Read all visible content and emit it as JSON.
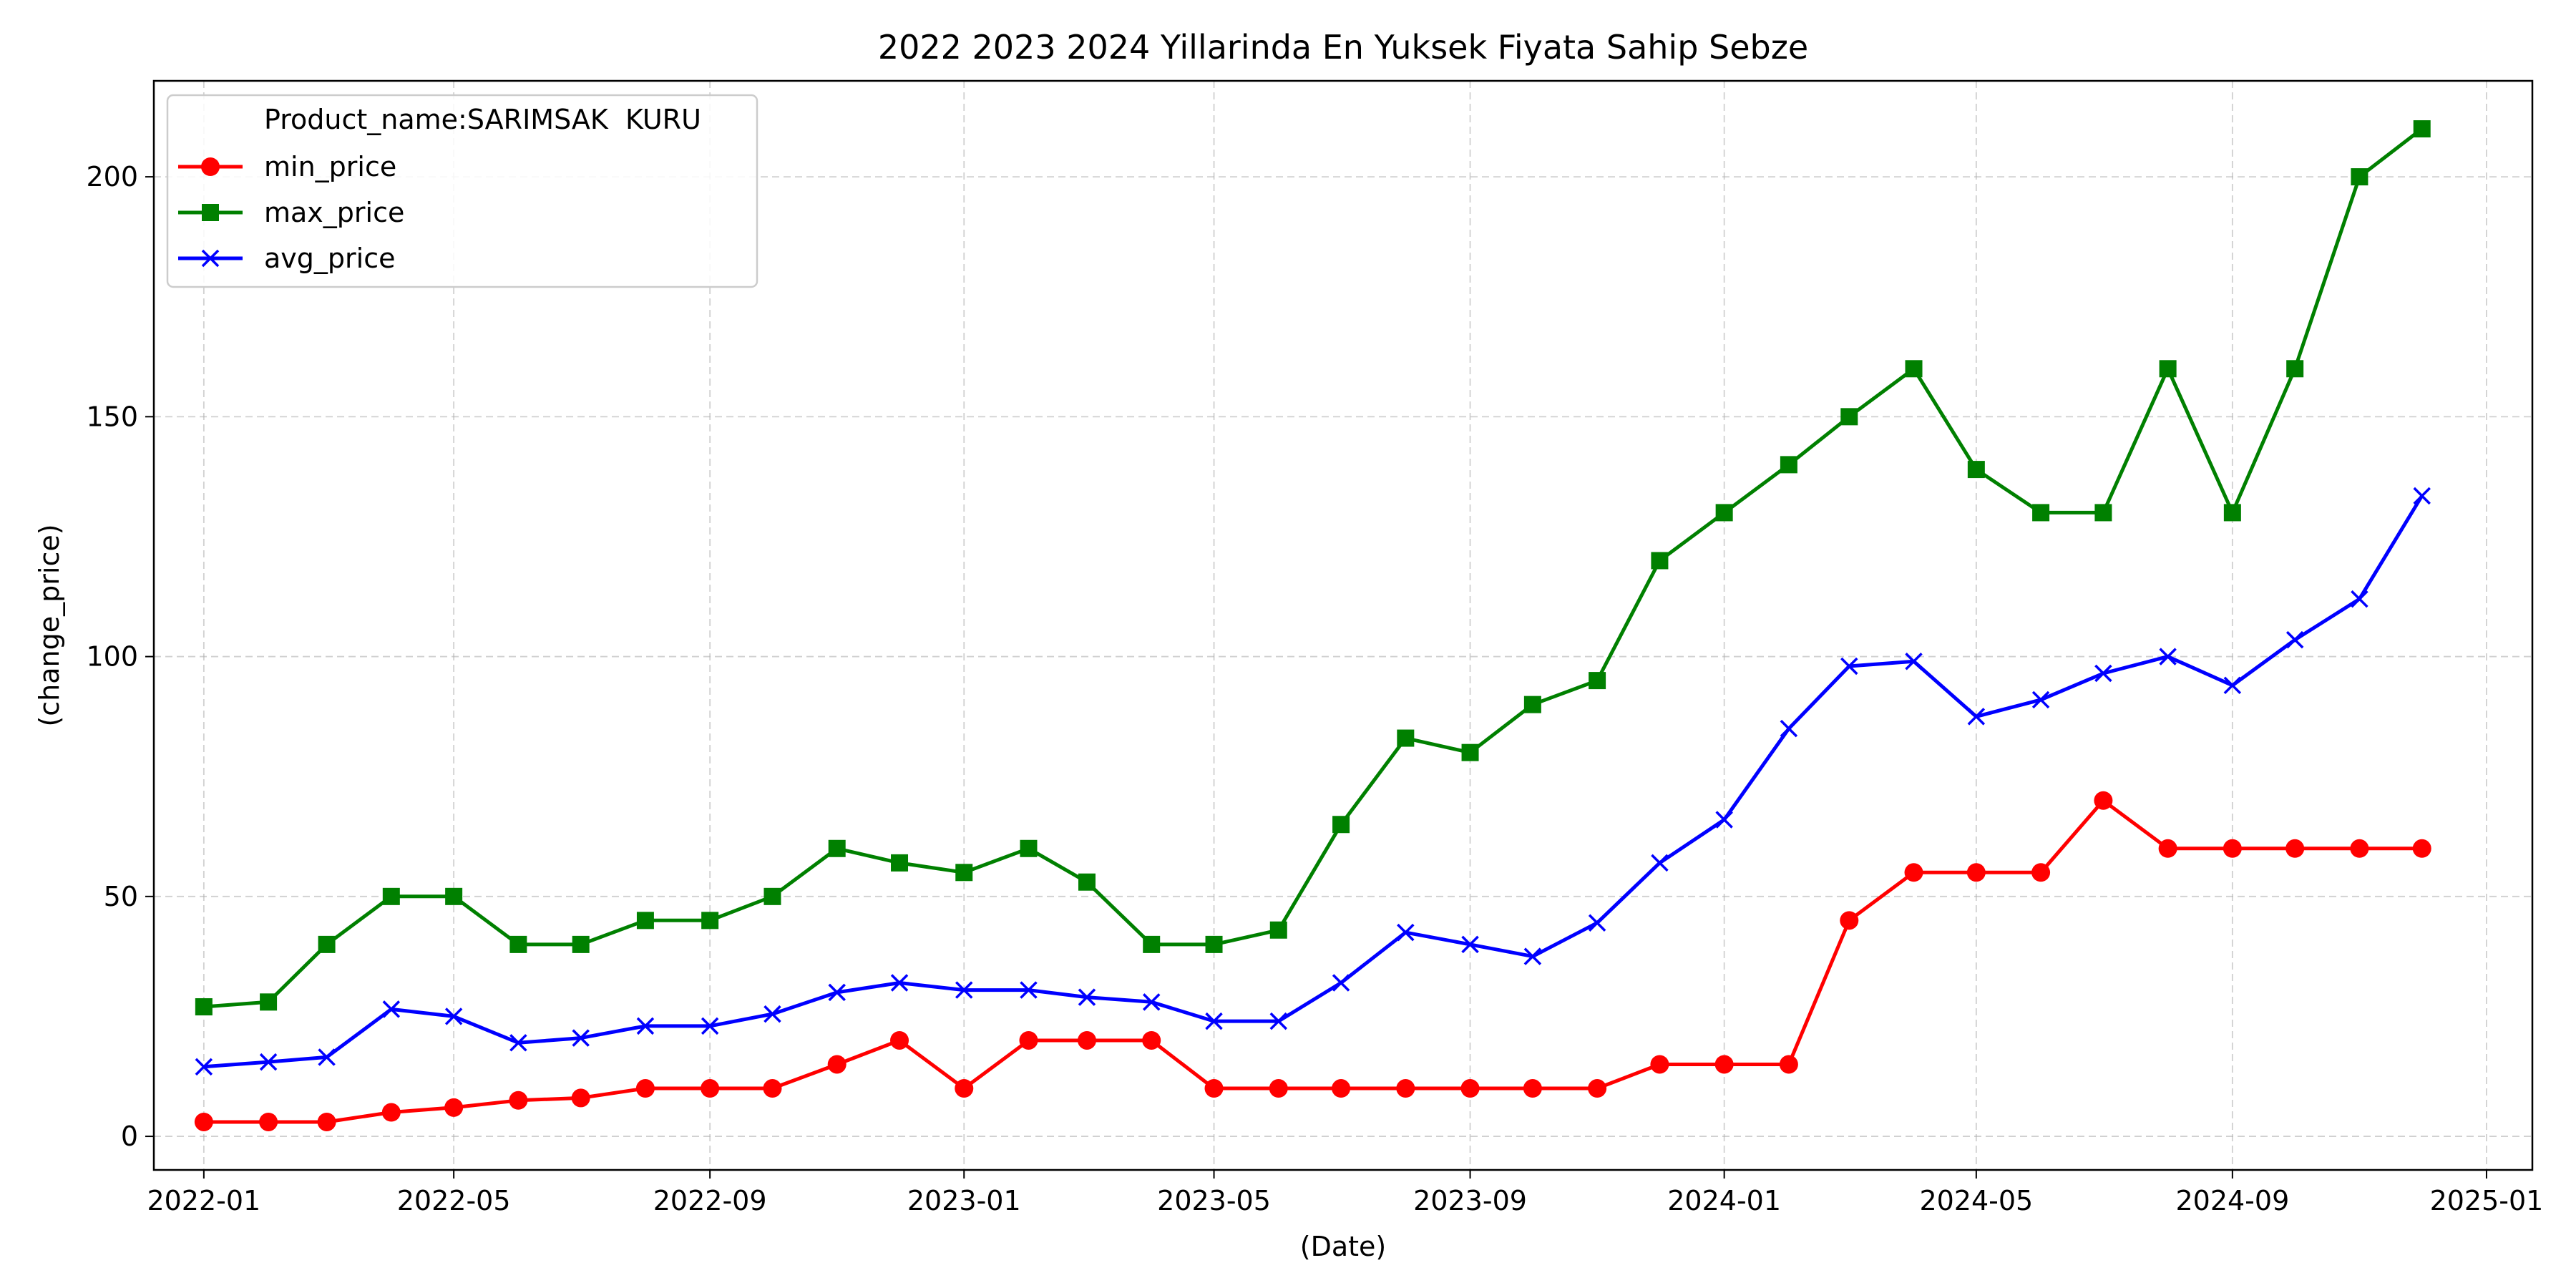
{
  "chart_data": {
    "type": "line",
    "title": "2022 2023 2024 Yillarinda En Yuksek Fiyata Sahip Sebze",
    "xlabel": "(Date)",
    "ylabel": "(change_price)",
    "x": [
      "2022-01",
      "2022-02",
      "2022-03",
      "2022-04",
      "2022-05",
      "2022-06",
      "2022-07",
      "2022-08",
      "2022-09",
      "2022-10",
      "2022-11",
      "2022-12",
      "2023-01",
      "2023-02",
      "2023-03",
      "2023-04",
      "2023-05",
      "2023-06",
      "2023-07",
      "2023-08",
      "2023-09",
      "2023-10",
      "2023-11",
      "2023-12",
      "2024-01",
      "2024-02",
      "2024-03",
      "2024-04",
      "2024-05",
      "2024-06",
      "2024-07",
      "2024-08",
      "2024-09",
      "2024-10",
      "2024-11",
      "2024-12"
    ],
    "x_range": [
      "2021-12-08",
      "2025-01-23"
    ],
    "xticks": [
      "2022-01",
      "2022-05",
      "2022-09",
      "2023-01",
      "2023-05",
      "2023-09",
      "2024-01",
      "2024-05",
      "2024-09",
      "2025-01"
    ],
    "ylim": [
      -7,
      220
    ],
    "yticks": [
      0,
      50,
      100,
      150,
      200
    ],
    "grid": true,
    "legend": {
      "placement": "top-left",
      "header": "Product_name:SARIMSAK  KURU"
    },
    "series": [
      {
        "name": "min_price",
        "color": "#ff0000",
        "marker": "circle",
        "values": [
          3,
          3,
          3,
          5,
          6,
          7.5,
          8,
          10,
          10,
          10,
          15,
          20,
          10,
          20,
          20,
          20,
          10,
          10,
          10,
          10,
          10,
          10,
          10,
          15,
          15,
          15,
          45,
          55,
          55,
          55,
          70,
          60,
          60,
          60,
          60,
          60
        ]
      },
      {
        "name": "max_price",
        "color": "#008000",
        "marker": "square",
        "values": [
          27,
          28,
          40,
          50,
          50,
          40,
          40,
          45,
          45,
          50,
          60,
          57,
          55,
          60,
          53,
          40,
          40,
          43,
          65,
          83,
          80,
          90,
          95,
          120,
          130,
          140,
          150,
          160,
          139,
          130,
          130,
          160,
          130,
          160,
          200,
          210
        ]
      },
      {
        "name": "avg_price",
        "color": "#0000ff",
        "marker": "x",
        "values": [
          14.5,
          15.5,
          16.5,
          26.5,
          25,
          19.5,
          20.5,
          23,
          23,
          25.5,
          30,
          32,
          30.5,
          30.5,
          29,
          28,
          24,
          24,
          32,
          42.5,
          40,
          37.5,
          44.5,
          57,
          66,
          85,
          98,
          99,
          87.5,
          91,
          96.5,
          100,
          94,
          103.5,
          112,
          133.5
        ]
      }
    ]
  }
}
